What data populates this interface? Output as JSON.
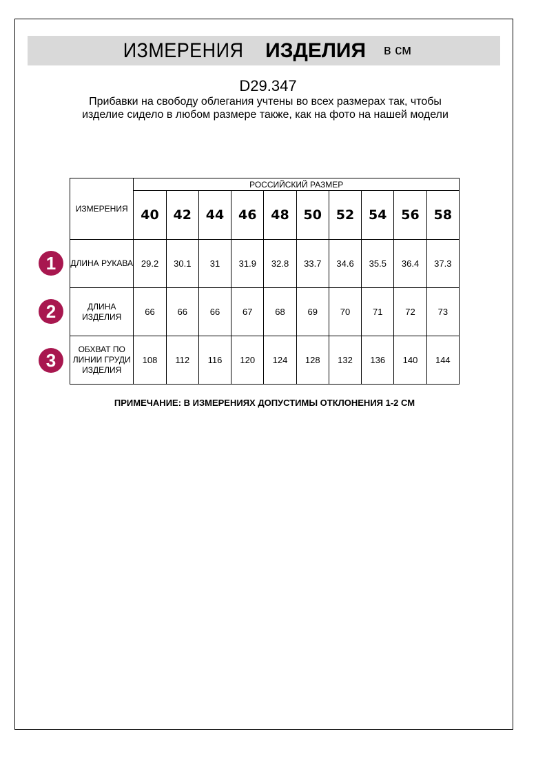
{
  "header": {
    "title_regular": "ИЗМЕРЕНИЯ",
    "title_bold": "ИЗДЕЛИЯ",
    "unit": "в см"
  },
  "product_code": "D29.347",
  "description": "Прибавки на свободу облегания учтены во всех размерах так, чтобы изделие сидело в любом размере также, как на фото на нашей модели",
  "table": {
    "corner_label": "ИЗМЕРЕНИЯ",
    "group_label": "РОССИЙСКИЙ РАЗМЕР",
    "sizes": [
      "40",
      "42",
      "44",
      "46",
      "48",
      "50",
      "52",
      "54",
      "56",
      "58"
    ],
    "rows": [
      {
        "badge": "1",
        "label": "ДЛИНА РУКАВА",
        "values": [
          "29.2",
          "30.1",
          "31",
          "31.9",
          "32.8",
          "33.7",
          "34.6",
          "35.5",
          "36.4",
          "37.3"
        ]
      },
      {
        "badge": "2",
        "label": "ДЛИНА ИЗДЕЛИЯ",
        "values": [
          "66",
          "66",
          "66",
          "67",
          "68",
          "69",
          "70",
          "71",
          "72",
          "73"
        ]
      },
      {
        "badge": "3",
        "label": "ОБХВАТ ПО ЛИНИИ ГРУДИ ИЗДЕЛИЯ",
        "values": [
          "108",
          "112",
          "116",
          "120",
          "124",
          "128",
          "132",
          "136",
          "140",
          "144"
        ]
      }
    ]
  },
  "note": "ПРИМЕЧАНИЕ: В ИЗМЕРЕНИЯХ ДОПУСТИМЫ ОТКЛОНЕНИЯ 1-2 СМ",
  "colors": {
    "badge": "#a8174f",
    "band": "#d9d9d9"
  }
}
